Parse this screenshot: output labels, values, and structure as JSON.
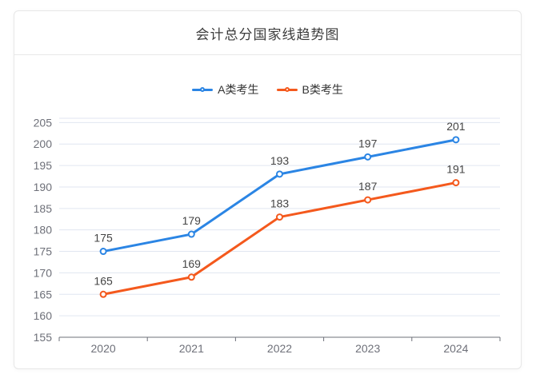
{
  "chart_data": {
    "type": "line",
    "title": "会计总分国家线趋势图",
    "categories": [
      "2020",
      "2021",
      "2022",
      "2023",
      "2024"
    ],
    "series": [
      {
        "name": "A类考生",
        "color": "#2b85e4",
        "values": [
          175,
          179,
          193,
          197,
          201
        ]
      },
      {
        "name": "B类考生",
        "color": "#f4591d",
        "values": [
          165,
          169,
          183,
          187,
          191
        ]
      }
    ],
    "ylim": [
      155,
      206
    ],
    "yticks": [
      155,
      160,
      165,
      170,
      175,
      180,
      185,
      190,
      195,
      200,
      205
    ],
    "grid": true,
    "legend_position": "top",
    "style": {
      "grid_line_color": "#e0e6f1",
      "axis_line_color": "#6e7079",
      "axis_label_color": "#6e7079",
      "data_label_color": "#444444",
      "legend_text_color": "#333333",
      "marker_fill": "#ffffff"
    }
  }
}
